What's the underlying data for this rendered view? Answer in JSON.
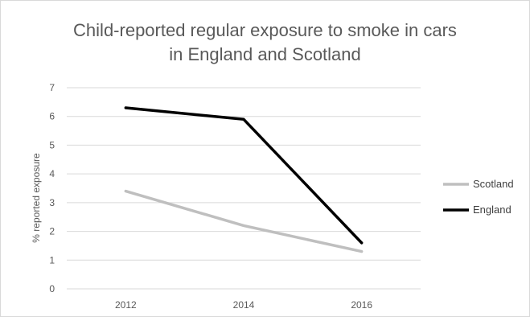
{
  "chart_data": {
    "type": "line",
    "title_lines": [
      "Child-reported regular exposure to smoke in cars",
      "in England and Scotland"
    ],
    "xlabel": "",
    "ylabel": "% reported exposure",
    "categories": [
      "2012",
      "2014",
      "2016"
    ],
    "ylim": [
      0,
      7
    ],
    "yticks": [
      "0",
      "1",
      "2",
      "3",
      "4",
      "5",
      "6",
      "7"
    ],
    "grid": true,
    "legend_position": "right",
    "series": [
      {
        "name": "Scotland",
        "values": [
          3.4,
          2.2,
          1.3
        ],
        "color": "#bfbfbf"
      },
      {
        "name": "England",
        "values": [
          6.3,
          5.9,
          1.6
        ],
        "color": "#000000"
      }
    ]
  },
  "colors": {
    "grid": "#d9d9d9",
    "text": "#595959"
  }
}
